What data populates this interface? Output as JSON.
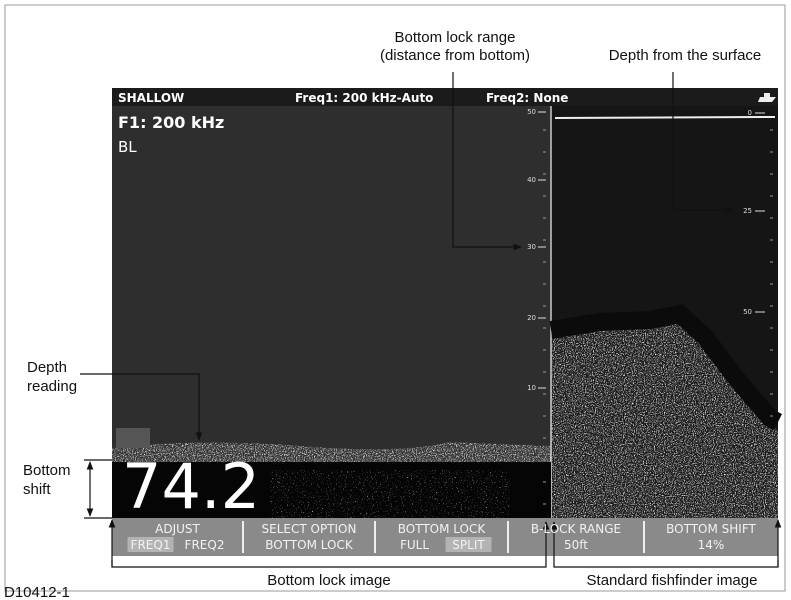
{
  "annotations": {
    "bottom_lock_range": [
      "Bottom lock range",
      "(distance from bottom)"
    ],
    "depth_from_surface": "Depth from the surface",
    "depth_reading": [
      "Depth",
      "reading"
    ],
    "bottom_shift": [
      "Bottom",
      "shift"
    ],
    "bottom_lock_image": "Bottom lock image",
    "standard_fishfinder_image": "Standard fishfinder image",
    "figure_id": "D10412-1"
  },
  "screen": {
    "header": {
      "mode": "SHALLOW",
      "freq1": "Freq1: 200 kHz-Auto",
      "freq2": "Freq2: None"
    },
    "frequency": "F1: 200 kHz",
    "mode_label": "BL",
    "depth": "74.2",
    "bottom_lock_scale": [
      "50",
      "40",
      "30",
      "20",
      "10"
    ],
    "depth_scale": [
      "0",
      "25",
      "50"
    ]
  },
  "softkeys": [
    {
      "label": "ADJUST",
      "options": [
        "FREQ1",
        "FREQ2"
      ],
      "selected": 0
    },
    {
      "label": "SELECT OPTION",
      "options": [
        "BOTTOM LOCK"
      ]
    },
    {
      "label": "BOTTOM LOCK",
      "options": [
        "FULL",
        "SPLIT"
      ],
      "selected": 1
    },
    {
      "label": "B-LOCK RANGE",
      "options": [
        "50ft"
      ]
    },
    {
      "label": "BOTTOM SHIFT",
      "options": [
        "14%"
      ]
    }
  ]
}
